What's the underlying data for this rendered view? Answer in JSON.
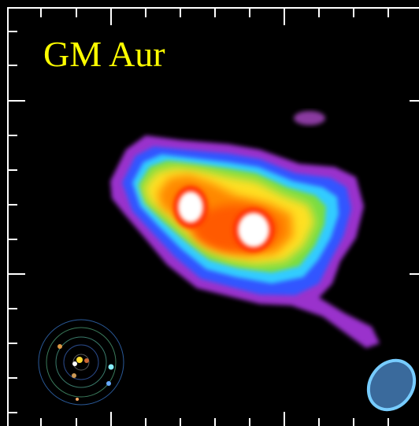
{
  "title": "GM Aur"
}
